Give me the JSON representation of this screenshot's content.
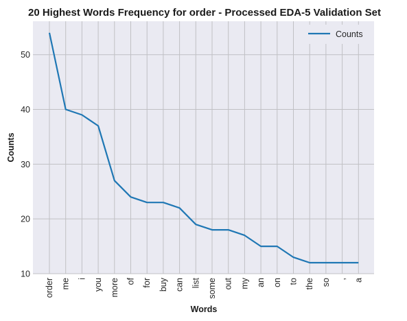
{
  "chart_data": {
    "type": "line",
    "title": "20 Highest Words Frequency for order - Processed EDA-5 Validation Set",
    "xlabel": "Words",
    "ylabel": "Counts",
    "categories": [
      "order",
      "me",
      "i",
      "you",
      "more",
      "of",
      "for",
      "buy",
      "can",
      "list",
      "some",
      "out",
      "my",
      "an",
      "on",
      "to",
      "the",
      "so",
      ",",
      "a"
    ],
    "series": [
      {
        "name": "Counts",
        "values": [
          54,
          40,
          39,
          37,
          27,
          24,
          23,
          23,
          22,
          19,
          18,
          18,
          17,
          15,
          15,
          13,
          12,
          12,
          12,
          12
        ]
      }
    ],
    "yticks": [
      "10",
      "20",
      "30",
      "40",
      "50"
    ],
    "ylim": [
      10,
      56.1
    ],
    "grid": true,
    "legend_position": "top-right",
    "colors": {
      "series": "#1f77b4",
      "plot_bg": "#eaeaf2",
      "grid": "#c0c0c4"
    }
  }
}
